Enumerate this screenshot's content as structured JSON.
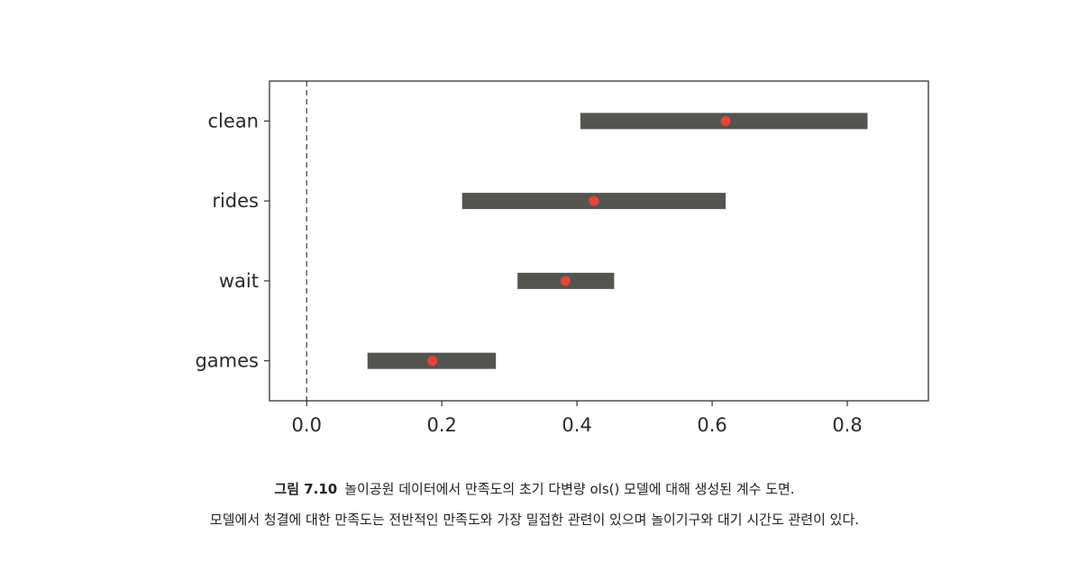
{
  "chart_data": {
    "type": "interval",
    "categories": [
      "clean",
      "rides",
      "wait",
      "games"
    ],
    "estimates": [
      0.62,
      0.425,
      0.383,
      0.186
    ],
    "ci_low": [
      0.405,
      0.23,
      0.312,
      0.09
    ],
    "ci_high": [
      0.83,
      0.62,
      0.455,
      0.28
    ],
    "xlim": [
      -0.055,
      0.92
    ],
    "xticks": [
      0.0,
      0.2,
      0.4,
      0.6,
      0.8
    ],
    "xtick_labels": [
      "0.0",
      "0.2",
      "0.4",
      "0.6",
      "0.8"
    ],
    "reference_line": 0.0,
    "grid": false,
    "colors": {
      "bar": "#555550",
      "point": "#e8443a",
      "axis": "#333333",
      "refline": "#555555"
    }
  },
  "caption": {
    "figure_label": "그림 7.10",
    "line1": "놀이공원 데이터에서 만족도의 초기 다변량 ols() 모델에 대해 생성된 계수 도면.",
    "line2": "모델에서 청결에 대한 만족도는 전반적인 만족도와 가장 밀접한 관련이 있으며 놀이기구와 대기 시간도 관련이 있다."
  }
}
